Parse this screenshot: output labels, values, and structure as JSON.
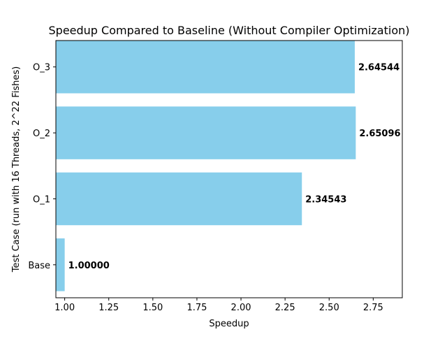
{
  "chart_data": {
    "type": "bar",
    "orientation": "horizontal",
    "title": "Speedup Compared to Baseline (Without Compiler Optimization)",
    "xlabel": "Speedup",
    "ylabel": "Test Case (run with 16 Threads, 2^22 Fishes)",
    "categories": [
      "Base",
      "O_1",
      "O_2",
      "O_3"
    ],
    "values": [
      1.0,
      2.34543,
      2.65096,
      2.64544
    ],
    "data_labels": [
      "1.00000",
      "2.34543",
      "2.65096",
      "2.64544"
    ],
    "xlim": [
      0.95,
      2.915
    ],
    "xticks": [
      1.0,
      1.25,
      1.5,
      1.75,
      2.0,
      2.25,
      2.5,
      2.75
    ],
    "xtick_labels": [
      "1.00",
      "1.25",
      "1.50",
      "1.75",
      "2.00",
      "2.25",
      "2.50",
      "2.75"
    ],
    "grid": false,
    "bar_color": "#87ceeb"
  }
}
